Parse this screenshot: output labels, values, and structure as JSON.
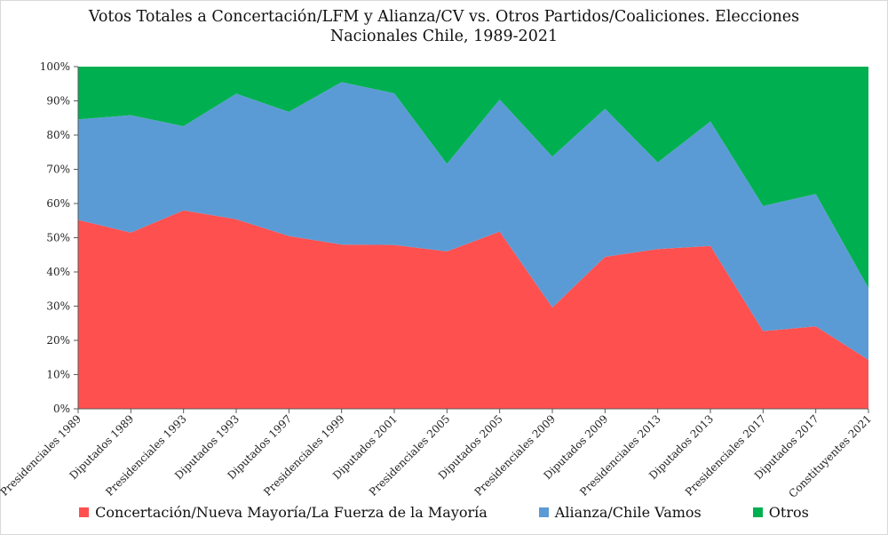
{
  "chart_data": {
    "type": "area",
    "stacked": "percent",
    "title_line1": "Votos Totales a Concertación/LFM y Alianza/CV vs. Otros Partidos/Coaliciones. Elecciones",
    "title_line2": "Nacionales Chile, 1989-2021",
    "categories": [
      "Presidenciales 1989",
      "Diputados 1989",
      "Presidenciales 1993",
      "Diputados 1993",
      "Diputados 1997",
      "Presidenciales 1999",
      "Diputados 2001",
      "Presidenciales 2005",
      "Diputados 2005",
      "Presidenciales 2009",
      "Diputados 2009",
      "Presidenciales 2013",
      "Diputados 2013",
      "Presidenciales 2017",
      "Diputados 2017",
      "Constituyentes 2021"
    ],
    "y_ticks": [
      "0%",
      "10%",
      "20%",
      "30%",
      "40%",
      "50%",
      "60%",
      "70%",
      "80%",
      "90%",
      "100%"
    ],
    "ylim": [
      0,
      100
    ],
    "grid": false,
    "legend_position": "bottom",
    "series": [
      {
        "name": "Concertación/Nueva Mayoría/La Fuerza de la Mayoría",
        "color": "#ff5050",
        "values": [
          55.2,
          51.5,
          58.0,
          55.4,
          50.5,
          48.0,
          47.9,
          46.0,
          51.8,
          29.6,
          44.4,
          46.7,
          47.6,
          22.7,
          24.1,
          14.3
        ]
      },
      {
        "name": "Alianza/Chile Vamos",
        "color": "#5b9bd5",
        "values": [
          29.4,
          34.3,
          24.6,
          36.7,
          36.3,
          47.5,
          44.3,
          25.6,
          38.6,
          44.1,
          43.3,
          25.3,
          36.4,
          36.6,
          38.7,
          21.0
        ]
      },
      {
        "name": "Otros",
        "color": "#00b050",
        "values": [
          15.4,
          14.2,
          17.4,
          7.9,
          13.2,
          4.5,
          7.8,
          28.4,
          9.6,
          26.3,
          12.3,
          28.0,
          16.0,
          40.7,
          37.2,
          64.7
        ]
      }
    ]
  }
}
